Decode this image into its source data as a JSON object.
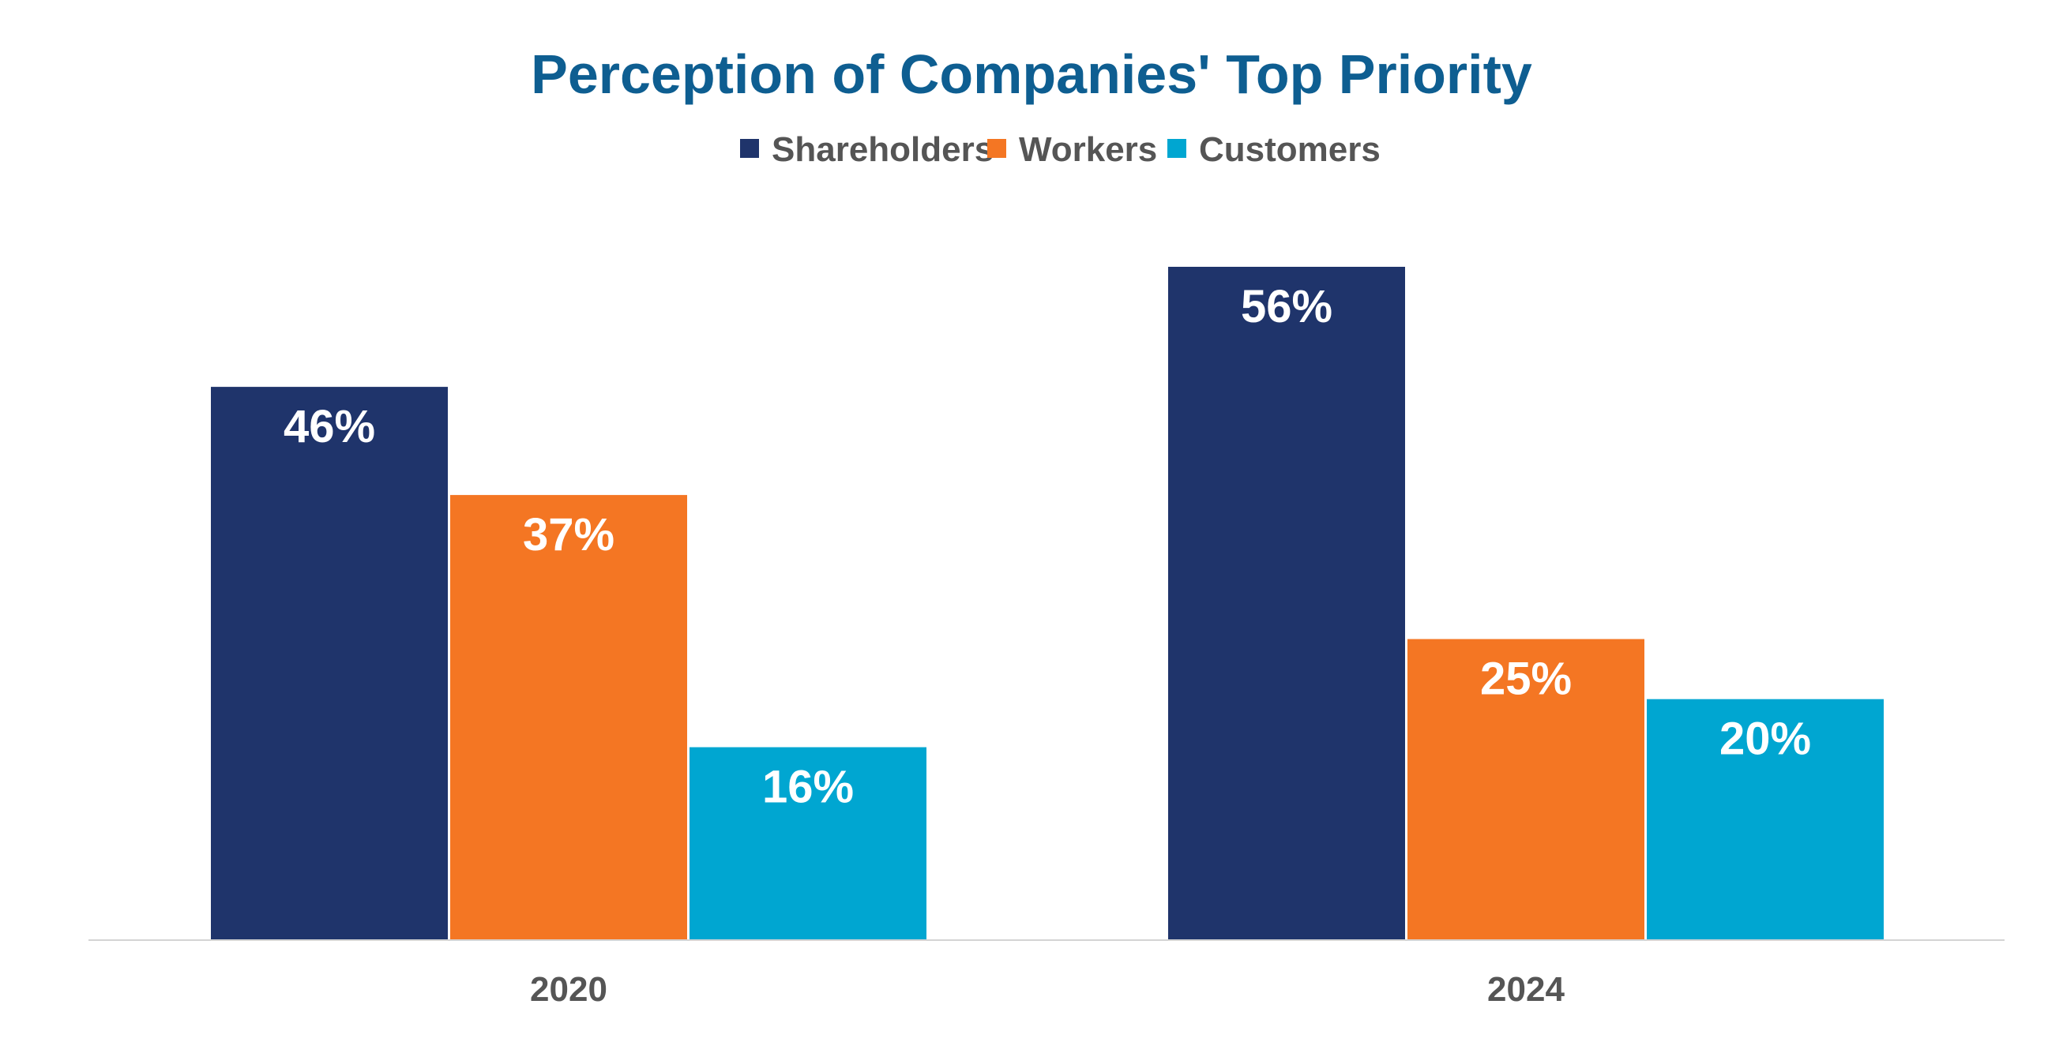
{
  "chart_data": {
    "type": "bar",
    "title": "Perception of Companies' Top Priority",
    "xlabel": "",
    "ylabel": "",
    "categories": [
      "2020",
      "2024"
    ],
    "series": [
      {
        "name": "Shareholders",
        "values": [
          46,
          56
        ],
        "labels": [
          "46%",
          "56%"
        ],
        "color": "#1f346b"
      },
      {
        "name": "Workers",
        "values": [
          37,
          25
        ],
        "labels": [
          "37%",
          "25%"
        ],
        "color": "#f47623"
      },
      {
        "name": "Customers",
        "values": [
          16,
          20
        ],
        "labels": [
          "16%",
          "20%"
        ],
        "color": "#00a6d1"
      }
    ],
    "ylim": [
      0,
      56
    ],
    "grid": false,
    "legend": "top-center",
    "data_labels": "inside-top",
    "title_color": "#0e5e91",
    "text_color": "#555555",
    "value_label_color": "#ffffff"
  }
}
